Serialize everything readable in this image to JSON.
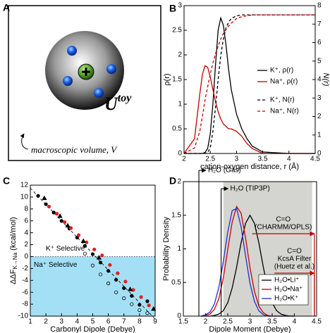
{
  "panel_a": {
    "label": "A",
    "energy_symbol": "U",
    "energy_superscript": "toy",
    "caption": "macroscopic volume, V"
  },
  "chart_data": [
    {
      "type": "line",
      "panel_label": "B",
      "xlabel": "cation-oxygen distance, r (Å)",
      "ylabel": "ρ(r)",
      "y2label": "N(r)",
      "x": [
        2.0,
        2.2,
        2.3,
        2.35,
        2.4,
        2.45,
        2.5,
        2.55,
        2.6,
        2.65,
        2.7,
        2.75,
        2.8,
        2.85,
        2.9,
        3.0,
        3.1,
        3.2,
        3.3,
        3.5,
        4.0,
        4.5
      ],
      "xlim": [
        2,
        4.5
      ],
      "xticks": [
        2,
        2.5,
        3,
        3.5,
        4,
        4.5
      ],
      "ylim": [
        0,
        3
      ],
      "yticks": [
        0,
        0.5,
        1,
        1.5,
        2,
        2.5,
        3
      ],
      "y2lim": [
        0,
        8
      ],
      "y2ticks": [
        0,
        1,
        2,
        3,
        4,
        5,
        6,
        7,
        8
      ],
      "legend": "right",
      "series": [
        {
          "name": "K⁺, ρ(r)",
          "color": "#000000",
          "dashed": false,
          "values": [
            0,
            0,
            0,
            0,
            0.02,
            0.1,
            0.4,
            1.0,
            1.8,
            2.5,
            2.75,
            2.6,
            2.2,
            1.7,
            1.3,
            0.8,
            0.5,
            0.3,
            0.15,
            0.03,
            0,
            0
          ]
        },
        {
          "name": "Na⁺, ρ(r)",
          "color": "#c00000",
          "dashed": false,
          "values": [
            0,
            0.3,
            1.2,
            1.6,
            1.78,
            1.75,
            1.55,
            1.3,
            1.05,
            0.85,
            0.7,
            0.6,
            0.55,
            0.5,
            0.5,
            0.45,
            0.35,
            0.2,
            0.1,
            0,
            0,
            0
          ]
        },
        {
          "name": "K⁺, N(r)",
          "color": "#000000",
          "dashed": true,
          "axis": "y2",
          "values": [
            0,
            0,
            0,
            0,
            0,
            0.05,
            0.3,
            1.2,
            2.5,
            4.0,
            5.3,
            6.2,
            6.8,
            7.1,
            7.3,
            7.45,
            7.5,
            7.5,
            7.5,
            7.5,
            7.5,
            7.5
          ]
        },
        {
          "name": "Na⁺, N(r)",
          "color": "#c00000",
          "dashed": true,
          "axis": "y2",
          "values": [
            0,
            0.3,
            1.2,
            2.0,
            2.9,
            3.6,
            4.3,
            4.9,
            5.4,
            5.8,
            6.2,
            6.5,
            6.7,
            6.9,
            7.05,
            7.3,
            7.4,
            7.45,
            7.5,
            7.5,
            7.5,
            7.5
          ]
        }
      ]
    },
    {
      "type": "scatter",
      "panel_label": "C",
      "xlabel": "Carbonyl Dipole (Debye)",
      "ylabel": "ΔΔF",
      "ylabel_sub": "K→Na",
      "ylabel_unit": "(kcal/mol)",
      "xlim": [
        1,
        9
      ],
      "xticks": [
        1,
        2,
        3,
        4,
        5,
        6,
        7,
        8,
        9
      ],
      "ylim": [
        -10,
        12
      ],
      "yticks": [
        -10,
        -8,
        -6,
        -4,
        -2,
        0,
        2,
        4,
        6,
        8,
        10,
        12
      ],
      "region_labels": [
        "K⁺ Selective",
        "Na⁺ Selective"
      ],
      "region_color": "#a4e0f5",
      "fit_line": {
        "x": [
          1,
          9
        ],
        "y": [
          11.5,
          -10.5
        ]
      },
      "series": [
        {
          "color": "#000000",
          "marker": "circle",
          "x": [
            1.5,
            2,
            2.5,
            3,
            3.5,
            4,
            4.5,
            5,
            5.5,
            6,
            6.5,
            7,
            7.5,
            8,
            8.5
          ],
          "values": [
            10.2,
            8.8,
            7.4,
            6.0,
            4.7,
            3.2,
            1.8,
            0.4,
            -1.0,
            -2.4,
            -3.9,
            -5.3,
            -6.6,
            -8.1,
            -7.5
          ]
        },
        {
          "color": "#e02020",
          "marker": "circle",
          "x": [
            2.2,
            2.7,
            3.2,
            3.6,
            4.1,
            4.6,
            5.1,
            5.6,
            6.1,
            6.6,
            7.1,
            7.6,
            8.1,
            8.6
          ],
          "values": [
            8.4,
            7.2,
            5.8,
            4.8,
            3.6,
            2.4,
            1.2,
            0.2,
            -1.4,
            -2.8,
            -4.2,
            -5.6,
            -6.8,
            -8.2
          ]
        },
        {
          "color": "#000000",
          "marker": "triangle",
          "x": [
            1.9,
            2.9,
            3.4,
            4.4,
            5.4,
            7.4,
            8.9
          ],
          "values": [
            9.8,
            6.8,
            5.2,
            2.6,
            -0.2,
            -5.5,
            -8.8
          ]
        },
        {
          "color": "#000000",
          "marker": "open",
          "x": [
            4.5,
            5,
            5.5,
            6,
            6.5,
            7,
            7.5,
            8,
            8.5
          ],
          "values": [
            0.5,
            -1.5,
            -3,
            -4.5,
            -6,
            -7,
            -8,
            -9,
            -9.5
          ]
        }
      ]
    },
    {
      "type": "line",
      "panel_label": "D",
      "xlabel": "Dipole Moment (Debye)",
      "ylabel": "Probability Density",
      "x": [
        1.9,
        2.0,
        2.1,
        2.2,
        2.3,
        2.4,
        2.5,
        2.6,
        2.7,
        2.8,
        2.9,
        3.0,
        3.1,
        3.2,
        3.3,
        3.4,
        3.5,
        3.6,
        3.7,
        3.8,
        3.9,
        4.0
      ],
      "xlim": [
        1.5,
        4.5
      ],
      "xticks": [
        1.5,
        2,
        2.5,
        3,
        3.5,
        4,
        4.5
      ],
      "ylim": [
        0,
        2
      ],
      "yticks": [
        0,
        0.5,
        1,
        1.5,
        2
      ],
      "shaded_band": [
        2.4,
        4.4
      ],
      "band_color": "#d4d4d0",
      "legend": "lower-right",
      "annotations": [
        {
          "x": 1.85,
          "lines": [
            "H₂O (Gas)"
          ],
          "color": "#000000"
        },
        {
          "x": 2.35,
          "lines": [
            "H₂O (TIP3P)"
          ],
          "color": "#000000"
        },
        {
          "x": [
            3.05,
            4.45
          ],
          "lines": [
            "C=O",
            "(CHARMM/OPLS)"
          ],
          "color": "#c00000"
        },
        {
          "x": [
            3.55,
            4.45
          ],
          "lines": [
            "C=O",
            "KcsA Filter",
            "(Huetz et al.)"
          ],
          "color": "#c00000"
        }
      ],
      "series": [
        {
          "name": "H₂O•Li⁺",
          "color": "#000000",
          "values": [
            0,
            0,
            0,
            0.01,
            0.03,
            0.08,
            0.2,
            0.42,
            0.73,
            1.09,
            1.38,
            1.5,
            1.38,
            1.09,
            0.73,
            0.42,
            0.2,
            0.08,
            0.03,
            0.01,
            0,
            0
          ]
        },
        {
          "name": "H₂O•Na⁺",
          "color": "#d00000",
          "values": [
            0,
            0.01,
            0.03,
            0.1,
            0.26,
            0.57,
            0.99,
            1.4,
            1.63,
            1.53,
            1.17,
            0.72,
            0.37,
            0.15,
            0.05,
            0.01,
            0,
            0,
            0,
            0,
            0,
            0
          ]
        },
        {
          "name": "H₂O•K⁺",
          "color": "#2030d0",
          "values": [
            0,
            0.02,
            0.06,
            0.18,
            0.43,
            0.81,
            1.25,
            1.57,
            1.6,
            1.33,
            0.9,
            0.49,
            0.22,
            0.08,
            0.02,
            0,
            0,
            0,
            0,
            0,
            0,
            0
          ]
        }
      ]
    }
  ]
}
